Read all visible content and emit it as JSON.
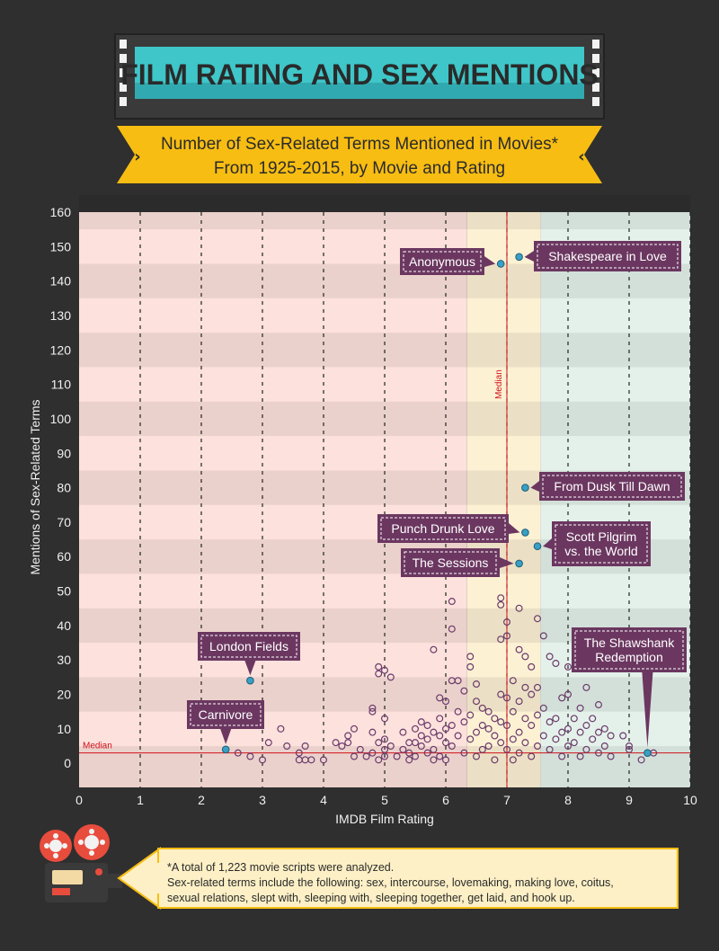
{
  "title": "FILM RATING AND SEX MENTIONS",
  "subtitle_line1": "Number of Sex-Related Terms Mentioned in Movies*",
  "subtitle_line2": "From 1925-2015, by Movie and Rating",
  "colors": {
    "background": "#2f2f2f",
    "title_teal": "#3fc6c9",
    "banner_yellow": "#f7bd12",
    "dot_purple": "#6b3a6b",
    "highlight_dot": "#3a9fc4",
    "label_purple": "#6b3760",
    "median_red": "#d0121a",
    "zone_red": "#fde1dc",
    "zone_yellow": "#fdf1d4",
    "zone_green": "#e4f1ea",
    "footnote_bg": "#fdf0c6"
  },
  "chart_data": {
    "type": "scatter",
    "title": "Number of Sex-Related Terms Mentioned in Movies* From 1925-2015, by Movie and Rating",
    "xlabel": "IMDB Film Rating",
    "ylabel": "Mentions of Sex-Related Terms",
    "xlim": [
      0,
      10
    ],
    "ylim": [
      -7,
      160
    ],
    "x_ticks": [
      0,
      1,
      2,
      3,
      4,
      5,
      6,
      7,
      8,
      9,
      10
    ],
    "y_ticks": [
      0,
      10,
      20,
      30,
      40,
      50,
      60,
      70,
      80,
      90,
      100,
      110,
      120,
      130,
      140,
      150,
      160
    ],
    "zones": [
      {
        "name": "low",
        "from": 0,
        "to": 6.35,
        "color": "#fde1dc"
      },
      {
        "name": "mid",
        "from": 6.35,
        "to": 7.55,
        "color": "#fdf1d4"
      },
      {
        "name": "high",
        "from": 7.55,
        "to": 10,
        "color": "#e4f1ea"
      }
    ],
    "median_x": 7.0,
    "median_x_label": "Median",
    "median_y": 3,
    "median_y_label": "Median",
    "highlighted": [
      {
        "name": "Anonymous",
        "x": 6.9,
        "y": 145
      },
      {
        "name": "Shakespeare in Love",
        "x": 7.2,
        "y": 147
      },
      {
        "name": "From Dusk Till Dawn",
        "x": 7.3,
        "y": 80
      },
      {
        "name": "Punch Drunk Love",
        "x": 7.3,
        "y": 67
      },
      {
        "name": "Scott Pilgrim vs. the World",
        "x": 7.5,
        "y": 63
      },
      {
        "name": "The Sessions",
        "x": 7.2,
        "y": 58
      },
      {
        "name": "London Fields",
        "x": 2.8,
        "y": 24
      },
      {
        "name": "Carnivore",
        "x": 2.4,
        "y": 4
      },
      {
        "name": "The Shawshank Redemption",
        "x": 9.3,
        "y": 3
      }
    ],
    "points": [
      [
        2.6,
        3
      ],
      [
        2.8,
        2
      ],
      [
        3.0,
        1
      ],
      [
        3.1,
        6
      ],
      [
        3.3,
        10
      ],
      [
        3.4,
        5
      ],
      [
        3.6,
        3
      ],
      [
        3.6,
        1
      ],
      [
        3.7,
        5
      ],
      [
        3.7,
        1
      ],
      [
        3.8,
        1
      ],
      [
        4.0,
        1
      ],
      [
        4.2,
        6
      ],
      [
        4.3,
        5
      ],
      [
        4.4,
        8
      ],
      [
        4.4,
        6
      ],
      [
        4.5,
        10
      ],
      [
        4.5,
        2
      ],
      [
        4.6,
        4
      ],
      [
        4.7,
        2
      ],
      [
        4.8,
        16
      ],
      [
        4.8,
        15
      ],
      [
        4.8,
        9
      ],
      [
        4.8,
        3
      ],
      [
        4.9,
        28
      ],
      [
        4.9,
        26
      ],
      [
        4.9,
        6
      ],
      [
        4.9,
        1
      ],
      [
        5.0,
        27
      ],
      [
        5.0,
        13
      ],
      [
        5.0,
        7
      ],
      [
        5.0,
        4
      ],
      [
        5.0,
        2
      ],
      [
        5.1,
        25
      ],
      [
        5.1,
        5
      ],
      [
        5.2,
        2
      ],
      [
        5.3,
        9
      ],
      [
        5.3,
        4
      ],
      [
        5.4,
        6
      ],
      [
        5.4,
        3
      ],
      [
        5.4,
        1
      ],
      [
        5.5,
        10
      ],
      [
        5.5,
        6
      ],
      [
        5.5,
        2
      ],
      [
        5.6,
        12
      ],
      [
        5.6,
        8
      ],
      [
        5.6,
        5
      ],
      [
        5.7,
        11
      ],
      [
        5.7,
        7
      ],
      [
        5.7,
        3
      ],
      [
        5.8,
        33
      ],
      [
        5.8,
        9
      ],
      [
        5.8,
        4
      ],
      [
        5.8,
        1
      ],
      [
        5.9,
        19
      ],
      [
        5.9,
        13
      ],
      [
        5.9,
        8
      ],
      [
        5.9,
        2
      ],
      [
        6.0,
        18
      ],
      [
        6.0,
        10
      ],
      [
        6.0,
        6
      ],
      [
        6.0,
        1
      ],
      [
        6.1,
        47
      ],
      [
        6.1,
        39
      ],
      [
        6.1,
        24
      ],
      [
        6.1,
        11
      ],
      [
        6.1,
        5
      ],
      [
        6.2,
        24
      ],
      [
        6.2,
        15
      ],
      [
        6.2,
        8
      ],
      [
        6.3,
        21
      ],
      [
        6.3,
        12
      ],
      [
        6.3,
        3
      ],
      [
        6.4,
        31
      ],
      [
        6.4,
        28
      ],
      [
        6.4,
        14
      ],
      [
        6.4,
        7
      ],
      [
        6.5,
        23
      ],
      [
        6.5,
        18
      ],
      [
        6.5,
        9
      ],
      [
        6.5,
        2
      ],
      [
        6.6,
        16
      ],
      [
        6.6,
        11
      ],
      [
        6.6,
        4
      ],
      [
        6.7,
        15
      ],
      [
        6.7,
        10
      ],
      [
        6.7,
        5
      ],
      [
        6.8,
        13
      ],
      [
        6.8,
        8
      ],
      [
        6.8,
        1
      ],
      [
        6.9,
        48
      ],
      [
        6.9,
        46
      ],
      [
        6.9,
        36
      ],
      [
        6.9,
        20
      ],
      [
        6.9,
        12
      ],
      [
        6.9,
        6
      ],
      [
        7.0,
        41
      ],
      [
        7.0,
        37
      ],
      [
        7.0,
        19
      ],
      [
        7.0,
        11
      ],
      [
        7.0,
        4
      ],
      [
        7.1,
        24
      ],
      [
        7.1,
        15
      ],
      [
        7.1,
        7
      ],
      [
        7.1,
        1
      ],
      [
        7.2,
        45
      ],
      [
        7.2,
        33
      ],
      [
        7.2,
        18
      ],
      [
        7.2,
        9
      ],
      [
        7.2,
        3
      ],
      [
        7.3,
        31
      ],
      [
        7.3,
        22
      ],
      [
        7.3,
        13
      ],
      [
        7.3,
        6
      ],
      [
        7.4,
        28
      ],
      [
        7.4,
        20
      ],
      [
        7.4,
        11
      ],
      [
        7.4,
        2
      ],
      [
        7.5,
        42
      ],
      [
        7.5,
        22
      ],
      [
        7.5,
        14
      ],
      [
        7.5,
        5
      ],
      [
        7.6,
        37
      ],
      [
        7.6,
        16
      ],
      [
        7.6,
        8
      ],
      [
        7.7,
        31
      ],
      [
        7.7,
        12
      ],
      [
        7.7,
        4
      ],
      [
        7.8,
        29
      ],
      [
        7.8,
        13
      ],
      [
        7.8,
        7
      ],
      [
        7.9,
        19
      ],
      [
        7.9,
        9
      ],
      [
        7.9,
        2
      ],
      [
        8.0,
        28
      ],
      [
        8.0,
        20
      ],
      [
        8.0,
        10
      ],
      [
        8.0,
        5
      ],
      [
        8.1,
        13
      ],
      [
        8.1,
        6
      ],
      [
        8.2,
        16
      ],
      [
        8.2,
        9
      ],
      [
        8.2,
        2
      ],
      [
        8.3,
        22
      ],
      [
        8.3,
        11
      ],
      [
        8.3,
        4
      ],
      [
        8.4,
        13
      ],
      [
        8.4,
        7
      ],
      [
        8.5,
        17
      ],
      [
        8.5,
        9
      ],
      [
        8.5,
        3
      ],
      [
        8.6,
        10
      ],
      [
        8.6,
        5
      ],
      [
        8.7,
        8
      ],
      [
        8.7,
        2
      ],
      [
        8.9,
        8
      ],
      [
        9.0,
        5
      ],
      [
        9.0,
        4
      ],
      [
        9.2,
        1
      ],
      [
        9.4,
        3
      ]
    ]
  },
  "footnote": {
    "line1": "*A total of 1,223 movie scripts were analyzed.",
    "line2": "Sex-related terms include the following: sex, intercourse, lovemaking, making love, coitus,",
    "line3": "sexual relations, slept with, sleeping with, sleeping together, get laid, and hook up."
  },
  "icons": {
    "projector": "film-projector-icon"
  }
}
